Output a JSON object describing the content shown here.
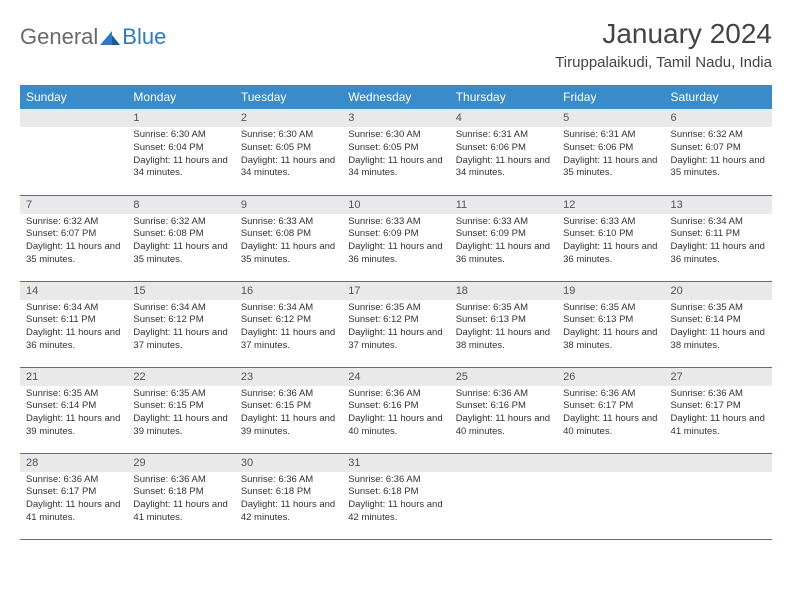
{
  "logo": {
    "general": "General",
    "blue": "Blue"
  },
  "title": "January 2024",
  "location": "Tiruppalaikudi, Tamil Nadu, India",
  "colors": {
    "header_bg": "#3a8bc9",
    "row_border": "#2f7abf",
    "daynum_bg": "#e9e9e9",
    "text": "#333333"
  },
  "weekdays": [
    "Sunday",
    "Monday",
    "Tuesday",
    "Wednesday",
    "Thursday",
    "Friday",
    "Saturday"
  ],
  "weeks": [
    [
      null,
      {
        "n": "1",
        "sr": "6:30 AM",
        "ss": "6:04 PM",
        "dl": "11 hours and 34 minutes."
      },
      {
        "n": "2",
        "sr": "6:30 AM",
        "ss": "6:05 PM",
        "dl": "11 hours and 34 minutes."
      },
      {
        "n": "3",
        "sr": "6:30 AM",
        "ss": "6:05 PM",
        "dl": "11 hours and 34 minutes."
      },
      {
        "n": "4",
        "sr": "6:31 AM",
        "ss": "6:06 PM",
        "dl": "11 hours and 34 minutes."
      },
      {
        "n": "5",
        "sr": "6:31 AM",
        "ss": "6:06 PM",
        "dl": "11 hours and 35 minutes."
      },
      {
        "n": "6",
        "sr": "6:32 AM",
        "ss": "6:07 PM",
        "dl": "11 hours and 35 minutes."
      }
    ],
    [
      {
        "n": "7",
        "sr": "6:32 AM",
        "ss": "6:07 PM",
        "dl": "11 hours and 35 minutes."
      },
      {
        "n": "8",
        "sr": "6:32 AM",
        "ss": "6:08 PM",
        "dl": "11 hours and 35 minutes."
      },
      {
        "n": "9",
        "sr": "6:33 AM",
        "ss": "6:08 PM",
        "dl": "11 hours and 35 minutes."
      },
      {
        "n": "10",
        "sr": "6:33 AM",
        "ss": "6:09 PM",
        "dl": "11 hours and 36 minutes."
      },
      {
        "n": "11",
        "sr": "6:33 AM",
        "ss": "6:09 PM",
        "dl": "11 hours and 36 minutes."
      },
      {
        "n": "12",
        "sr": "6:33 AM",
        "ss": "6:10 PM",
        "dl": "11 hours and 36 minutes."
      },
      {
        "n": "13",
        "sr": "6:34 AM",
        "ss": "6:11 PM",
        "dl": "11 hours and 36 minutes."
      }
    ],
    [
      {
        "n": "14",
        "sr": "6:34 AM",
        "ss": "6:11 PM",
        "dl": "11 hours and 36 minutes."
      },
      {
        "n": "15",
        "sr": "6:34 AM",
        "ss": "6:12 PM",
        "dl": "11 hours and 37 minutes."
      },
      {
        "n": "16",
        "sr": "6:34 AM",
        "ss": "6:12 PM",
        "dl": "11 hours and 37 minutes."
      },
      {
        "n": "17",
        "sr": "6:35 AM",
        "ss": "6:12 PM",
        "dl": "11 hours and 37 minutes."
      },
      {
        "n": "18",
        "sr": "6:35 AM",
        "ss": "6:13 PM",
        "dl": "11 hours and 38 minutes."
      },
      {
        "n": "19",
        "sr": "6:35 AM",
        "ss": "6:13 PM",
        "dl": "11 hours and 38 minutes."
      },
      {
        "n": "20",
        "sr": "6:35 AM",
        "ss": "6:14 PM",
        "dl": "11 hours and 38 minutes."
      }
    ],
    [
      {
        "n": "21",
        "sr": "6:35 AM",
        "ss": "6:14 PM",
        "dl": "11 hours and 39 minutes."
      },
      {
        "n": "22",
        "sr": "6:35 AM",
        "ss": "6:15 PM",
        "dl": "11 hours and 39 minutes."
      },
      {
        "n": "23",
        "sr": "6:36 AM",
        "ss": "6:15 PM",
        "dl": "11 hours and 39 minutes."
      },
      {
        "n": "24",
        "sr": "6:36 AM",
        "ss": "6:16 PM",
        "dl": "11 hours and 40 minutes."
      },
      {
        "n": "25",
        "sr": "6:36 AM",
        "ss": "6:16 PM",
        "dl": "11 hours and 40 minutes."
      },
      {
        "n": "26",
        "sr": "6:36 AM",
        "ss": "6:17 PM",
        "dl": "11 hours and 40 minutes."
      },
      {
        "n": "27",
        "sr": "6:36 AM",
        "ss": "6:17 PM",
        "dl": "11 hours and 41 minutes."
      }
    ],
    [
      {
        "n": "28",
        "sr": "6:36 AM",
        "ss": "6:17 PM",
        "dl": "11 hours and 41 minutes."
      },
      {
        "n": "29",
        "sr": "6:36 AM",
        "ss": "6:18 PM",
        "dl": "11 hours and 41 minutes."
      },
      {
        "n": "30",
        "sr": "6:36 AM",
        "ss": "6:18 PM",
        "dl": "11 hours and 42 minutes."
      },
      {
        "n": "31",
        "sr": "6:36 AM",
        "ss": "6:18 PM",
        "dl": "11 hours and 42 minutes."
      },
      null,
      null,
      null
    ]
  ],
  "labels": {
    "sunrise": "Sunrise:",
    "sunset": "Sunset:",
    "daylight": "Daylight:"
  }
}
